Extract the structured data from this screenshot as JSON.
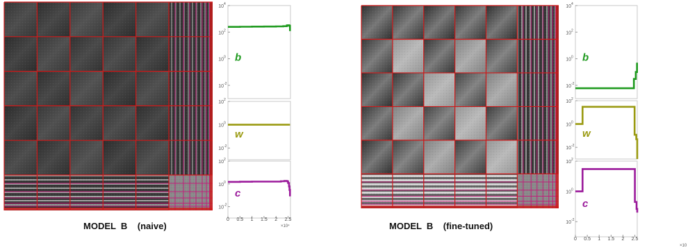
{
  "captions": {
    "left": "MODEL  B    (naive)",
    "right": "MODEL  B    (fine-tuned)"
  },
  "colors": {
    "b": "#1f9a1f",
    "w": "#9a9a10",
    "c": "#9b1a9b",
    "grid_major": "#d01818",
    "grid_minor": "#c0207a"
  },
  "chart_data": [
    {
      "type": "heatmap",
      "title": "MODEL  B    (naive)",
      "description_blocks": "block-structured matrix with coarse red block grid and fine purple sub-grid near the lower/right edges"
    },
    {
      "type": "line",
      "panel": "naive",
      "xlim": [
        0,
        26000
      ],
      "x_ticks": [
        "0",
        "0.5",
        "1",
        "1.5",
        "2",
        "2.5"
      ],
      "x_multiplier": "×10⁴",
      "series": [
        {
          "name": "b",
          "ylim_exp": [
            -3,
            4
          ],
          "y_ticks": [
            {
              "exp": 4,
              "label": "10"
            },
            {
              "exp": 2,
              "label": "10"
            },
            {
              "exp": 0,
              "label": "10"
            },
            {
              "exp": -2,
              "label": "10"
            }
          ],
          "x": [
            0,
            5000,
            10000,
            15000,
            20000,
            23000,
            24500,
            25000,
            25500,
            25800
          ],
          "y": [
            250,
            255,
            260,
            265,
            270,
            280,
            320,
            330,
            300,
            120
          ]
        },
        {
          "name": "w",
          "ylim_exp": [
            -3,
            2
          ],
          "y_ticks": [
            {
              "exp": 2,
              "label": "10"
            },
            {
              "exp": 0,
              "label": "10"
            },
            {
              "exp": -2,
              "label": "10"
            }
          ],
          "x": [
            0,
            5000,
            10000,
            15000,
            20000,
            25800
          ],
          "y": [
            1,
            1,
            1,
            1,
            1,
            1
          ]
        },
        {
          "name": "c",
          "ylim_exp": [
            -3,
            2
          ],
          "y_ticks": [
            {
              "exp": 2,
              "label": "10"
            },
            {
              "exp": 0,
              "label": "10"
            },
            {
              "exp": -2,
              "label": "10"
            }
          ],
          "x": [
            0,
            5000,
            10000,
            15000,
            20000,
            22000,
            23500,
            24500,
            25000,
            25400,
            25600,
            25800
          ],
          "y": [
            1.5,
            1.55,
            1.6,
            1.6,
            1.6,
            1.7,
            1.8,
            1.7,
            1.2,
            0.6,
            0.3,
            0.08
          ]
        }
      ]
    },
    {
      "type": "heatmap",
      "title": "MODEL  B    (fine-tuned)",
      "description_blocks": "block-structured matrix with coarse red block grid, brighter diagonal-patterned blocks"
    },
    {
      "type": "line",
      "panel": "fine-tuned",
      "xlim": [
        0,
        26000
      ],
      "x_ticks": [
        "0",
        "0.5",
        "1",
        "1.5",
        "2",
        "2.5"
      ],
      "x_multiplier": "×10",
      "series": [
        {
          "name": "b",
          "ylim_exp": [
            -3,
            4
          ],
          "y_ticks": [
            {
              "exp": 4,
              "label": "10"
            },
            {
              "exp": 2,
              "label": "10"
            },
            {
              "exp": 0,
              "label": "10"
            },
            {
              "exp": -2,
              "label": "10"
            }
          ],
          "x": [
            0,
            5000,
            10000,
            15000,
            20000,
            24500,
            24600,
            25300,
            25400,
            25800,
            25900
          ],
          "y": [
            0.006,
            0.006,
            0.006,
            0.006,
            0.006,
            0.006,
            0.03,
            0.03,
            0.1,
            0.1,
            0.5
          ]
        },
        {
          "name": "w",
          "ylim_exp": [
            -3,
            2
          ],
          "y_ticks": [
            {
              "exp": 2,
              "label": "10"
            },
            {
              "exp": 0,
              "label": "10"
            },
            {
              "exp": -2,
              "label": "10"
            }
          ],
          "x": [
            0,
            2900,
            3000,
            24800,
            24900,
            25500,
            25600,
            26000
          ],
          "y": [
            1,
            1,
            30,
            30,
            0.12,
            0.12,
            0.05,
            0.001
          ]
        },
        {
          "name": "c",
          "ylim_exp": [
            -3,
            2
          ],
          "y_ticks": [
            {
              "exp": 2,
              "label": "10"
            },
            {
              "exp": 0,
              "label": "10"
            },
            {
              "exp": -2,
              "label": "10"
            }
          ],
          "x": [
            0,
            2900,
            3000,
            24900,
            25000,
            25600,
            25700,
            26000
          ],
          "y": [
            1,
            1,
            30,
            30,
            0.2,
            0.2,
            0.07,
            0.04
          ]
        }
      ]
    }
  ]
}
